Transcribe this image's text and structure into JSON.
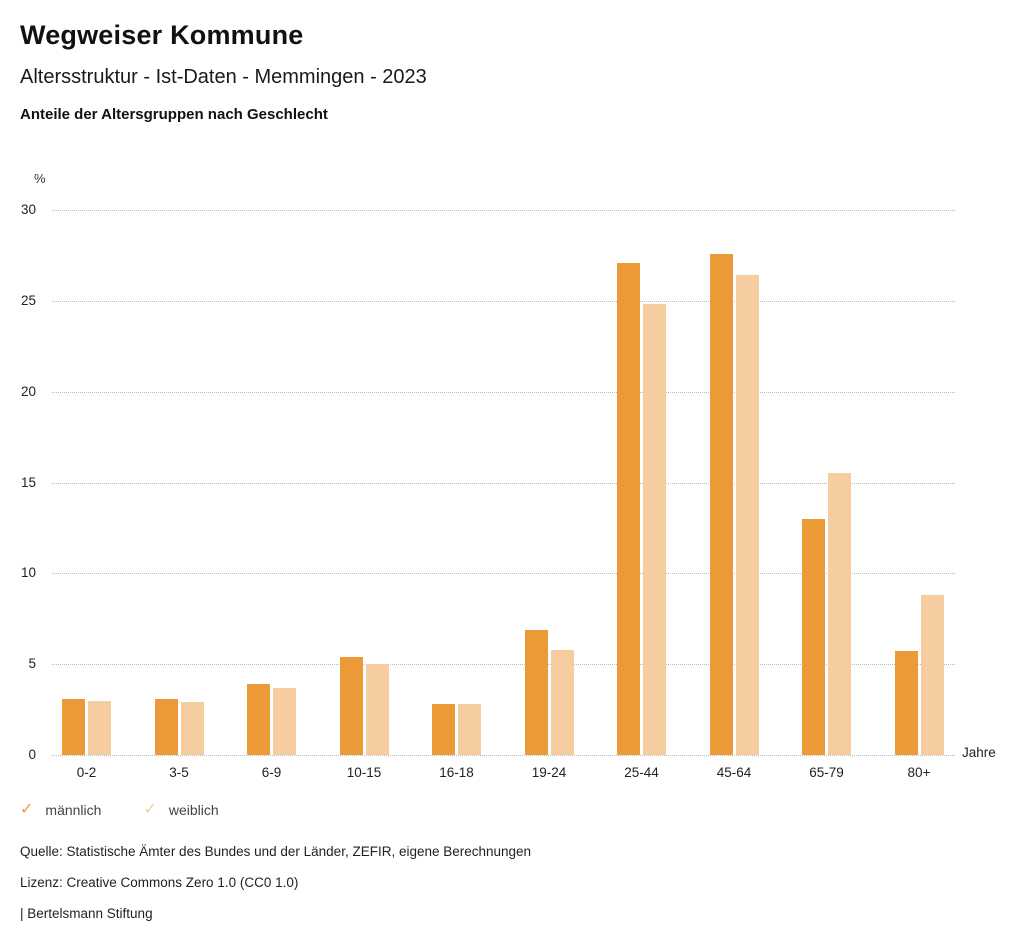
{
  "header": {
    "title": "Wegweiser Kommune",
    "subtitle": "Altersstruktur - Ist-Daten - Memmingen - 2023",
    "heading": "Anteile der Altersgruppen nach Geschlecht"
  },
  "chart_data": {
    "type": "bar",
    "title": "Anteile der Altersgruppen nach Geschlecht",
    "categories": [
      "0-2",
      "3-5",
      "6-9",
      "10-15",
      "16-18",
      "19-24",
      "25-44",
      "45-64",
      "65-79",
      "80+"
    ],
    "series": [
      {
        "name": "männlich",
        "color": "#EC9937",
        "values": [
          3.1,
          3.1,
          3.9,
          5.4,
          2.8,
          6.9,
          27.1,
          27.6,
          13.0,
          5.7
        ]
      },
      {
        "name": "weiblich",
        "color": "#F6CD9E",
        "values": [
          3.0,
          2.9,
          3.7,
          5.0,
          2.8,
          5.8,
          24.8,
          26.4,
          15.5,
          8.8
        ]
      }
    ],
    "xlabel": "Jahre",
    "ylabel": "%",
    "ylim": [
      0,
      30
    ],
    "yticks": [
      0,
      5,
      10,
      15,
      20,
      25,
      30
    ],
    "grid": "horizontal-dotted",
    "legend_position": "bottom-left"
  },
  "axes": {
    "y_unit_label": "%",
    "x_unit_label": "Jahre"
  },
  "legend": {
    "check_icon": "✓",
    "items": [
      {
        "label": "männlich",
        "color": "#EC9937"
      },
      {
        "label": "weiblich",
        "color": "#F6CD9E"
      }
    ]
  },
  "footer": {
    "source": "Quelle: Statistische Ämter des Bundes und der Länder, ZEFIR, eigene Berechnungen",
    "license": "Lizenz: Creative Commons Zero 1.0 (CC0 1.0)",
    "attribution": "| Bertelsmann Stiftung"
  }
}
